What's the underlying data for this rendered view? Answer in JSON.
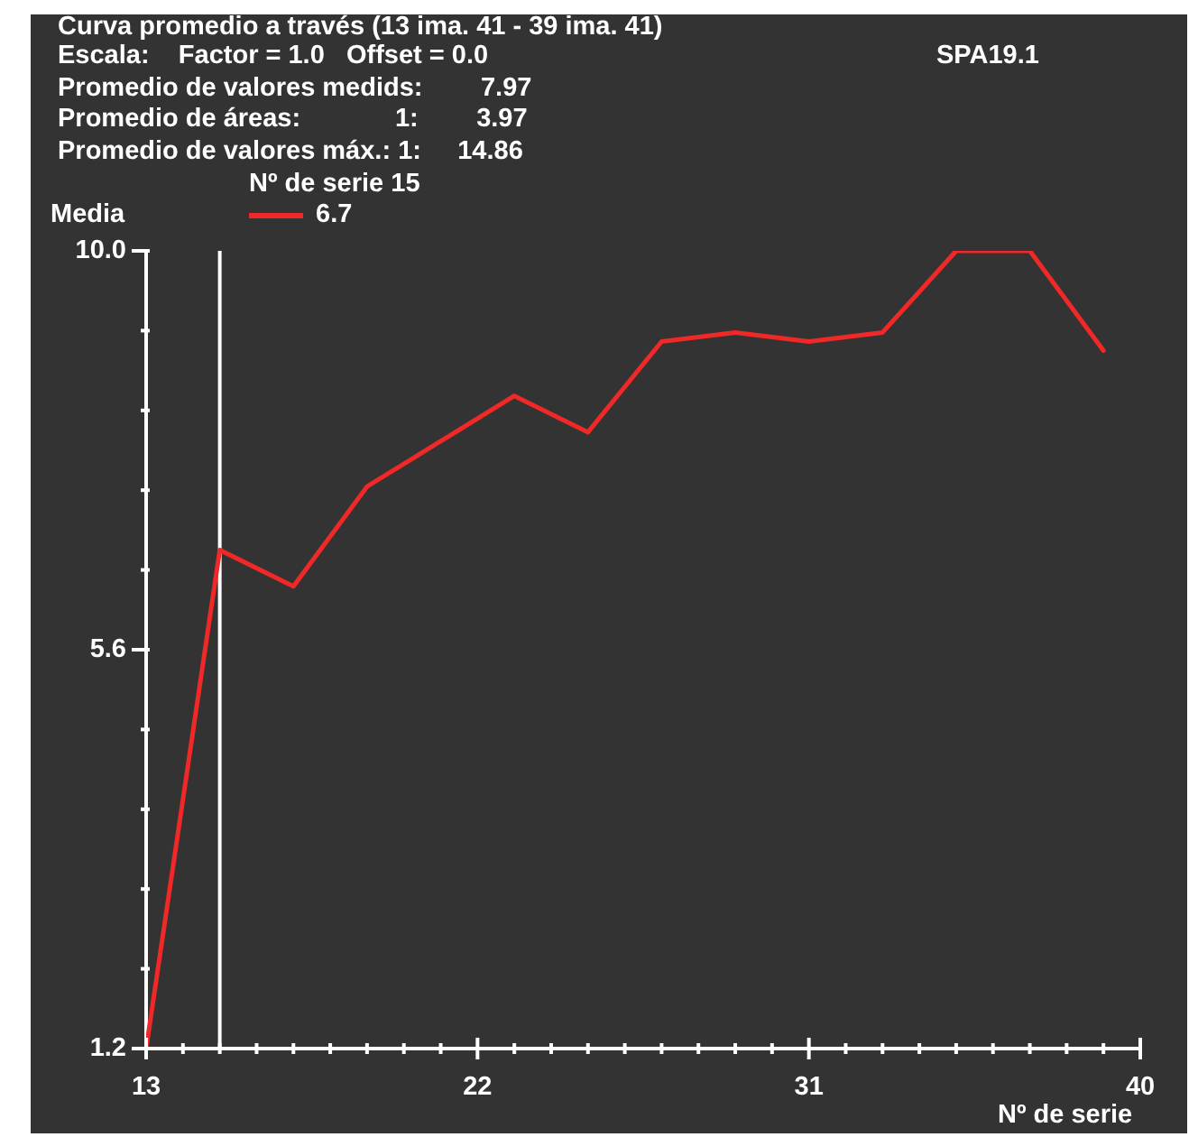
{
  "chart_data": {
    "type": "line",
    "title": "Curva promedio a través (13 ima. 41 - 39 ima. 41)",
    "annotations": [
      "Escala:    Factor = 1.0   Offset = 0.0",
      "SPA19.1",
      "Promedio de valores medids:        7.97",
      "Promedio de áreas:             1:        3.97",
      "Promedio de valores máx.: 1:     14.86"
    ],
    "xlabel": "Nº de serie",
    "ylabel": "Media",
    "legend_title": "Nº de serie 15",
    "legend": "top left",
    "marker": "none",
    "x": [
      13,
      15,
      17,
      19,
      21,
      23,
      25,
      27,
      29,
      31,
      33,
      35,
      37,
      39
    ],
    "series": [
      {
        "name": "6.7",
        "color": "#f02828",
        "values": [
          1.2,
          6.7,
          6.3,
          7.4,
          7.9,
          8.4,
          8.0,
          9.0,
          9.1,
          9.0,
          9.1,
          10.0,
          10.0,
          8.9
        ]
      }
    ],
    "xlim": [
      13,
      40
    ],
    "xticks": [
      13,
      {
        "value": 14,
        "label": null
      },
      {
        "value": 15,
        "label": null
      },
      {
        "value": 16,
        "label": null
      },
      {
        "value": 17,
        "label": null
      },
      {
        "value": 18,
        "label": null
      },
      {
        "value": 19,
        "label": null
      },
      {
        "value": 20,
        "label": null
      },
      {
        "value": 21,
        "label": null
      },
      22,
      {
        "value": 23,
        "label": null
      },
      {
        "value": 24,
        "label": null
      },
      {
        "value": 25,
        "label": null
      },
      {
        "value": 26,
        "label": null
      },
      {
        "value": 27,
        "label": null
      },
      {
        "value": 28,
        "label": null
      },
      {
        "value": 29,
        "label": null
      },
      {
        "value": 30,
        "label": null
      },
      31,
      {
        "value": 32,
        "label": null
      },
      {
        "value": 33,
        "label": null
      },
      {
        "value": 34,
        "label": null
      },
      {
        "value": 35,
        "label": null
      },
      {
        "value": 36,
        "label": null
      },
      {
        "value": 37,
        "label": null
      },
      {
        "value": 38,
        "label": null
      },
      {
        "value": 39,
        "label": null
      },
      40
    ],
    "ylim": [
      1.2,
      10.0
    ],
    "yticks": [
      1.2,
      {
        "value": 2.08,
        "label": null
      },
      {
        "value": 2.96,
        "label": null
      },
      {
        "value": 3.84,
        "label": null
      },
      {
        "value": 4.72,
        "label": null
      },
      5.6,
      {
        "value": 6.48,
        "label": null
      },
      {
        "value": 7.36,
        "label": null
      },
      {
        "value": 8.24,
        "label": null
      },
      {
        "value": 9.12,
        "label": null
      },
      {
        "value": 10,
        "label": "10.0"
      }
    ],
    "ref_lines": [
      {
        "axis": "x",
        "value": 15,
        "color": "#ffffff"
      }
    ]
  }
}
